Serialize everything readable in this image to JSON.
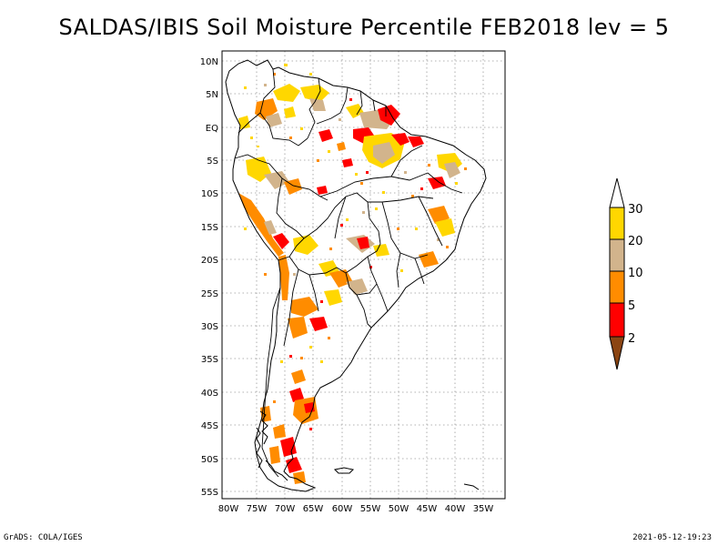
{
  "title": "SALDAS/IBIS Soil Moisture Percentile FEB2018 lev = 5",
  "map": {
    "lat_labels": [
      "10N",
      "5N",
      "EQ",
      "5S",
      "10S",
      "15S",
      "20S",
      "25S",
      "30S",
      "35S",
      "40S",
      "45S",
      "50S",
      "55S"
    ],
    "lon_labels": [
      "80W",
      "75W",
      "70W",
      "65W",
      "60W",
      "55W",
      "50W",
      "45W",
      "40W",
      "35W"
    ],
    "extent": {
      "lon": [
        -81,
        -33
      ],
      "lat": [
        -56,
        12
      ]
    }
  },
  "colorbar": {
    "labels": [
      "30",
      "20",
      "10",
      "5",
      "2"
    ],
    "colors": [
      "#ffd700",
      "#d2b48c",
      "#ff8c00",
      "#ff0000",
      "#8b4513"
    ],
    "top_arrow_color": "#ffffff"
  },
  "colors": {
    "brown": "#8b4513",
    "red": "#ff0000",
    "orange": "#ff8c00",
    "tan": "#d2b48c",
    "yellow": "#ffd700"
  },
  "footer": {
    "left": "GrADS: COLA/IGES",
    "right": "2021-05-12-19:23"
  }
}
